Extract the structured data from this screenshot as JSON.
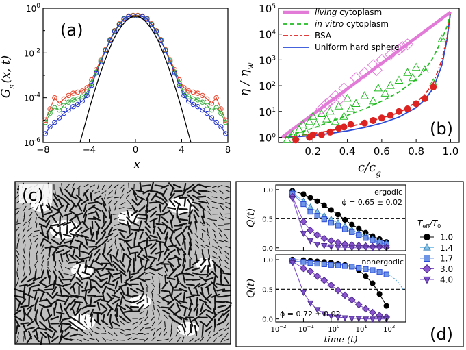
{
  "figure": {
    "panels": [
      "(a)",
      "(b)",
      "(c)",
      "(d)"
    ]
  },
  "colors": {
    "red": "#e8432a",
    "green": "#3cb043",
    "blue": "#2233cc",
    "black": "#000000",
    "pink": "#e27ad8",
    "dashgreen": "#22bb22",
    "bsa": "#dd2222",
    "uniform": "#2a4bd7",
    "light_blue_marker": "#87c6e8",
    "violet": "#7b4fc9",
    "purple_diamond": "#8b55cf",
    "square_blue": "#6f95e6",
    "panel_c_bg": "#c0c0c0"
  },
  "chart_data": [
    {
      "id": "a",
      "type": "line",
      "panel_label": "(a)",
      "xlabel": "x",
      "ylabel": "G_s(x, t)",
      "ylabel_main": "G",
      "ylabel_sub": "s",
      "ylabel_args": "(x, t)",
      "xlim": [
        -8,
        8
      ],
      "ylim_log10": [
        -6,
        0
      ],
      "xticks": [
        "−8",
        "−4",
        "0",
        "4",
        "8"
      ],
      "xtick_values": [
        -8,
        -4,
        0,
        4,
        8
      ],
      "ytick_exponents": [
        "0",
        "-2",
        "-4",
        "-6"
      ],
      "ytick_values_log10": [
        0,
        -2,
        -4,
        -6
      ],
      "ytick_base": "10",
      "series": [
        {
          "name": "red",
          "color": "red",
          "marker": "circle",
          "x": [
            -7.8,
            -7.4,
            -7.0,
            -6.6,
            -6.2,
            -5.8,
            -5.4,
            -5.0,
            -4.6,
            -4.2,
            -3.8,
            -3.4,
            -3.0,
            -2.6,
            -2.2,
            -1.8,
            -1.4,
            -1.0,
            -0.6,
            -0.2,
            0.2,
            0.6,
            1.0,
            1.4,
            1.8,
            2.2,
            2.6,
            3.0,
            3.4,
            3.8,
            4.2,
            4.6,
            5.0,
            5.4,
            5.8,
            6.2,
            6.6,
            7.0,
            7.4,
            7.8
          ],
          "log10y": [
            -5.0,
            -4.5,
            -4.0,
            -4.25,
            -4.05,
            -3.9,
            -3.8,
            -3.75,
            -3.7,
            -3.55,
            -3.2,
            -2.75,
            -2.3,
            -1.85,
            -1.4,
            -1.0,
            -0.7,
            -0.45,
            -0.35,
            -0.32,
            -0.32,
            -0.35,
            -0.45,
            -0.7,
            -1.0,
            -1.4,
            -1.85,
            -2.3,
            -2.75,
            -3.2,
            -3.55,
            -3.7,
            -3.75,
            -3.8,
            -3.9,
            -4.05,
            -4.25,
            -4.0,
            -4.5,
            -5.0
          ]
        },
        {
          "name": "green",
          "color": "green",
          "marker": "circle",
          "x": [
            -7.8,
            -7.4,
            -7.0,
            -6.6,
            -6.2,
            -5.8,
            -5.4,
            -5.0,
            -4.6,
            -4.2,
            -3.8,
            -3.4,
            -3.0,
            -2.6,
            -2.2,
            -1.8,
            -1.4,
            -1.0,
            -0.6,
            -0.2,
            0.2,
            0.6,
            1.0,
            1.4,
            1.8,
            2.2,
            2.6,
            3.0,
            3.4,
            3.8,
            4.2,
            4.6,
            5.0,
            5.4,
            5.8,
            6.2,
            6.6,
            7.0,
            7.4,
            7.8
          ],
          "log10y": [
            -5.1,
            -4.7,
            -4.45,
            -4.55,
            -4.35,
            -4.2,
            -4.1,
            -4.05,
            -3.95,
            -3.75,
            -3.35,
            -2.85,
            -2.35,
            -1.88,
            -1.42,
            -1.02,
            -0.72,
            -0.47,
            -0.37,
            -0.34,
            -0.34,
            -0.37,
            -0.47,
            -0.72,
            -1.02,
            -1.42,
            -1.88,
            -2.35,
            -2.85,
            -3.35,
            -3.75,
            -3.95,
            -4.05,
            -4.1,
            -4.2,
            -4.35,
            -4.55,
            -4.45,
            -4.7,
            -5.1
          ]
        },
        {
          "name": "blue",
          "color": "blue",
          "marker": "circle",
          "x": [
            -7.8,
            -7.4,
            -7.0,
            -6.6,
            -6.2,
            -5.8,
            -5.4,
            -5.0,
            -4.6,
            -4.2,
            -3.8,
            -3.4,
            -3.0,
            -2.6,
            -2.2,
            -1.8,
            -1.4,
            -1.0,
            -0.6,
            -0.2,
            0.2,
            0.6,
            1.0,
            1.4,
            1.8,
            2.2,
            2.6,
            3.0,
            3.4,
            3.8,
            4.2,
            4.6,
            5.0,
            5.4,
            5.8,
            6.2,
            6.6,
            7.0,
            7.4,
            7.8
          ],
          "log10y": [
            -5.6,
            -5.3,
            -5.1,
            -4.9,
            -4.7,
            -4.55,
            -4.4,
            -4.3,
            -4.15,
            -3.9,
            -3.45,
            -2.9,
            -2.4,
            -1.9,
            -1.45,
            -1.04,
            -0.74,
            -0.49,
            -0.38,
            -0.35,
            -0.35,
            -0.38,
            -0.49,
            -0.74,
            -1.04,
            -1.45,
            -1.9,
            -2.4,
            -2.9,
            -3.45,
            -3.9,
            -4.15,
            -4.3,
            -4.4,
            -4.55,
            -4.7,
            -4.9,
            -5.1,
            -5.3,
            -5.6
          ]
        },
        {
          "name": "gaussian",
          "color": "black",
          "marker": "none",
          "x": [
            -4.8,
            -4.4,
            -4.0,
            -3.6,
            -3.2,
            -2.8,
            -2.4,
            -2.0,
            -1.6,
            -1.2,
            -0.8,
            -0.4,
            0.0,
            0.4,
            0.8,
            1.2,
            1.6,
            2.0,
            2.4,
            2.8,
            3.2,
            3.6,
            4.0,
            4.4,
            4.8
          ],
          "log10y": [
            -6.0,
            -5.25,
            -4.5,
            -3.8,
            -3.15,
            -2.55,
            -2.0,
            -1.5,
            -1.1,
            -0.8,
            -0.55,
            -0.4,
            -0.35,
            -0.4,
            -0.55,
            -0.8,
            -1.1,
            -1.5,
            -2.0,
            -2.55,
            -3.15,
            -3.8,
            -4.5,
            -5.25,
            -6.0
          ]
        }
      ]
    },
    {
      "id": "b",
      "type": "scatter",
      "panel_label": "(b)",
      "xlabel_main": "c/c",
      "xlabel_sub": "g",
      "ylabel_main": "η / η",
      "ylabel_sub": "w",
      "xlim": [
        0.0,
        1.05
      ],
      "ylim_log10": [
        -0.2,
        5.0
      ],
      "xticks": [
        "0.2",
        "0.4",
        "0.6",
        "0.8",
        "1.0"
      ],
      "xtick_values": [
        0.2,
        0.4,
        0.6,
        0.8,
        1.0
      ],
      "ytick_exponents": [
        "0",
        "1",
        "2",
        "3",
        "4",
        "5"
      ],
      "ytick_values_log10": [
        0,
        1,
        2,
        3,
        4,
        5
      ],
      "ytick_base": "10",
      "legend": [
        {
          "italic": "living",
          "text": " cytoplasm",
          "color": "pink",
          "style": "thick"
        },
        {
          "italic": "in vitro",
          "text": " cytoplasm",
          "color": "dashgreen",
          "style": "dash"
        },
        {
          "italic": "",
          "text": "BSA",
          "color": "bsa",
          "style": "dashdot"
        },
        {
          "italic": "",
          "text": "Uniform hard sphere",
          "color": "uniform",
          "style": "solid"
        }
      ],
      "lines": {
        "living": {
          "x": [
            0.02,
            1.0
          ],
          "log10y": [
            0.0,
            4.85
          ]
        },
        "invitro": {
          "x": [
            0.02,
            0.1,
            0.2,
            0.3,
            0.4,
            0.5,
            0.6,
            0.7,
            0.8,
            0.85,
            0.9,
            0.95,
            0.98,
            1.0
          ],
          "log10y": [
            0.0,
            0.15,
            0.35,
            0.6,
            0.85,
            1.1,
            1.4,
            1.75,
            2.25,
            2.6,
            3.1,
            3.8,
            4.3,
            4.85
          ]
        },
        "bsa": {
          "x": [
            0.02,
            0.1,
            0.2,
            0.3,
            0.4,
            0.5,
            0.6,
            0.7,
            0.8,
            0.85,
            0.9,
            0.95,
            0.98,
            1.0
          ],
          "log10y": [
            0.0,
            0.05,
            0.15,
            0.25,
            0.4,
            0.55,
            0.75,
            0.95,
            1.35,
            1.65,
            2.1,
            3.0,
            3.9,
            4.85
          ]
        },
        "uniform": {
          "x": [
            0.02,
            0.1,
            0.2,
            0.3,
            0.4,
            0.5,
            0.6,
            0.7,
            0.8,
            0.85,
            0.9,
            0.95,
            0.98,
            1.0
          ],
          "log10y": [
            0.0,
            0.02,
            0.07,
            0.15,
            0.25,
            0.38,
            0.55,
            0.78,
            1.15,
            1.45,
            1.9,
            2.8,
            3.8,
            4.85
          ]
        }
      },
      "living_markers": {
        "x": [
          0.25,
          0.28,
          0.3,
          0.33,
          0.36,
          0.38,
          0.45,
          0.5,
          0.55,
          0.57,
          0.6,
          0.65,
          0.7,
          0.72,
          0.75
        ],
        "log10y": [
          1.1,
          1.3,
          1.4,
          1.6,
          1.5,
          1.9,
          2.3,
          2.5,
          2.8,
          2.6,
          3.0,
          3.2,
          3.4,
          3.5,
          3.6
        ]
      },
      "invitro_markers": {
        "x": [
          0.05,
          0.08,
          0.1,
          0.12,
          0.14,
          0.16,
          0.18,
          0.2,
          0.22,
          0.25,
          0.28,
          0.3,
          0.33,
          0.35,
          0.38,
          0.4,
          0.42,
          0.45,
          0.5,
          0.55,
          0.58,
          0.62,
          0.65,
          0.7,
          0.75,
          0.78,
          0.8,
          0.85,
          0.9,
          0.95
        ],
        "log10y": [
          -0.1,
          0.1,
          0.0,
          0.3,
          0.5,
          0.2,
          0.6,
          0.8,
          0.5,
          0.9,
          0.7,
          1.0,
          0.6,
          1.2,
          0.8,
          1.5,
          1.1,
          1.3,
          1.6,
          1.4,
          1.9,
          1.7,
          2.0,
          2.2,
          2.5,
          2.3,
          2.7,
          2.6,
          2.1,
          3.8
        ]
      },
      "bsa_markers": {
        "x": [
          0.1,
          0.18,
          0.2,
          0.25,
          0.3,
          0.35,
          0.38,
          0.42,
          0.5,
          0.55,
          0.6,
          0.65,
          0.7,
          0.75,
          0.8,
          0.85,
          0.9
        ],
        "log10y": [
          -0.1,
          0.0,
          0.1,
          0.1,
          0.2,
          0.35,
          0.4,
          0.5,
          0.55,
          0.65,
          0.75,
          0.85,
          1.0,
          1.1,
          1.3,
          1.5,
          1.95
        ]
      }
    },
    {
      "id": "d",
      "type": "line",
      "panel_label": "(d)",
      "xlabel": "time (t)",
      "ylabel": "Q(t)",
      "xlim_log10": [
        -2,
        2.7
      ],
      "ylim": [
        -0.05,
        1.08
      ],
      "xtick_exponents": [
        "−2",
        "−1",
        "0",
        "1",
        "2"
      ],
      "xtick_values_log10": [
        -2,
        -1,
        0,
        1,
        2
      ],
      "xtick_base": "10",
      "yticks": [
        "0.0",
        "0.5",
        "1.0"
      ],
      "ytick_values": [
        0.0,
        0.5,
        1.0
      ],
      "legend_title": "T_eff/T_0",
      "legend_title_main": "T",
      "legend_title_sub1": "eff",
      "legend_title_mid": "/T",
      "legend_title_sub2": "0",
      "legend": [
        {
          "label": "1.0",
          "marker": "circle",
          "color": "black"
        },
        {
          "label": "1.4",
          "marker": "triangle-up",
          "color": "light_blue_marker"
        },
        {
          "label": "1.7",
          "marker": "square",
          "color": "square_blue"
        },
        {
          "label": "3.0",
          "marker": "diamond",
          "color": "purple_diamond"
        },
        {
          "label": "4.0",
          "marker": "triangle-down",
          "color": "violet"
        }
      ],
      "top": {
        "annotation_title": "ergodic",
        "annotation_phi": "ϕ = 0.65 ± 0.02",
        "x_log10": [
          -1.4,
          -1.0,
          -0.75,
          -0.5,
          -0.25,
          0.0,
          0.25,
          0.5,
          0.75,
          1.0,
          1.25,
          1.5,
          1.75,
          2.0
        ],
        "series": [
          {
            "label": "1.0",
            "values": [
              0.98,
              0.92,
              0.86,
              0.8,
              0.73,
              0.65,
              0.57,
              0.48,
              0.4,
              0.33,
              0.26,
              0.2,
              0.15,
              0.1
            ]
          },
          {
            "label": "1.4",
            "values": [
              0.95,
              0.8,
              0.7,
              0.62,
              0.55,
              0.49,
              0.43,
              0.37,
              0.31,
              0.25,
              0.2,
              0.15,
              0.11,
              0.08
            ]
          },
          {
            "label": "1.7",
            "values": [
              0.93,
              0.75,
              0.62,
              0.55,
              0.49,
              0.43,
              0.38,
              0.32,
              0.27,
              0.22,
              0.17,
              0.13,
              0.09,
              0.06
            ]
          },
          {
            "label": "3.0",
            "values": [
              0.88,
              0.45,
              0.3,
              0.22,
              0.16,
              0.12,
              0.09,
              0.06,
              0.05,
              0.04,
              0.03,
              0.02,
              0.02,
              0.01
            ]
          },
          {
            "label": "4.0",
            "values": [
              0.85,
              0.25,
              0.12,
              0.06,
              0.04,
              0.02,
              0.01,
              0.01,
              0.0,
              0.0,
              0.0,
              0.0,
              0.0,
              0.0
            ]
          }
        ]
      },
      "bottom": {
        "annotation_title": "nonergodic",
        "annotation_phi": "ϕ = 0.72 ± 0.02",
        "x_log10": [
          -1.4,
          -1.0,
          -0.75,
          -0.5,
          -0.25,
          0.0,
          0.25,
          0.5,
          0.75,
          1.0,
          1.25,
          1.5,
          1.75,
          2.0
        ],
        "series": [
          {
            "label": "1.0",
            "values": [
              1.0,
              0.99,
              0.98,
              0.97,
              0.96,
              0.95,
              0.93,
              0.91,
              0.88,
              0.82,
              0.72,
              0.6,
              0.42,
              0.22
            ]
          },
          {
            "label": "1.7",
            "values": [
              0.98,
              0.96,
              0.94,
              0.93,
              0.92,
              0.91,
              0.9,
              0.89,
              0.88,
              0.86,
              0.84,
              0.82,
              0.79,
              0.75
            ]
          },
          {
            "label": "3.0",
            "values": [
              0.97,
              0.85,
              0.8,
              0.72,
              0.65,
              0.57,
              0.48,
              0.4,
              0.32,
              0.24,
              0.17,
              0.11,
              0.06,
              0.03
            ]
          },
          {
            "label": "4.0",
            "values": [
              0.95,
              0.45,
              0.27,
              0.16,
              0.09,
              0.05,
              0.03,
              0.02,
              0.01,
              0.01,
              0.0,
              0.0,
              0.0,
              0.0
            ]
          }
        ]
      }
    }
  ]
}
